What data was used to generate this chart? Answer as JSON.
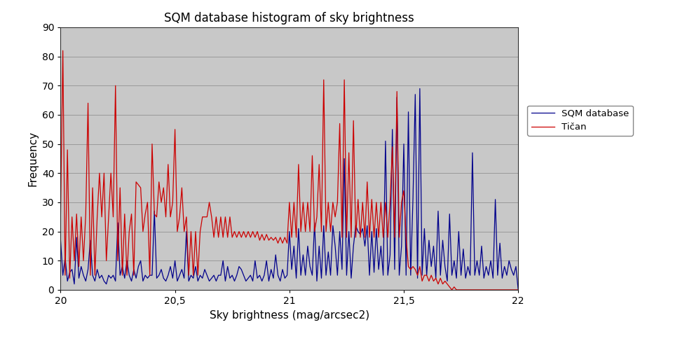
{
  "title": "SQM database histogram of sky brightness",
  "xlabel": "Sky brightness (mag/arcsec2)",
  "ylabel": "Frequency",
  "xlim": [
    20.0,
    22.0
  ],
  "ylim": [
    0,
    90
  ],
  "yticks": [
    0,
    10,
    20,
    30,
    40,
    50,
    60,
    70,
    80,
    90
  ],
  "xticks": [
    20.0,
    20.5,
    21.0,
    21.5,
    22.0
  ],
  "xticklabels": [
    "20",
    "20,5",
    "21",
    "21,5",
    "22"
  ],
  "legend_labels": [
    "SQM database",
    "Tičan"
  ],
  "line_colors": [
    "#00008B",
    "#CC0000"
  ],
  "background_color": "#C8C8C8",
  "title_fontsize": 12,
  "axis_fontsize": 11,
  "tick_fontsize": 10,
  "sqm_x": [
    20.0,
    20.01,
    20.02,
    20.03,
    20.04,
    20.05,
    20.06,
    20.07,
    20.08,
    20.09,
    20.1,
    20.11,
    20.12,
    20.13,
    20.14,
    20.15,
    20.16,
    20.17,
    20.18,
    20.19,
    20.2,
    20.21,
    20.22,
    20.23,
    20.24,
    20.25,
    20.26,
    20.27,
    20.28,
    20.29,
    20.3,
    20.31,
    20.32,
    20.33,
    20.34,
    20.35,
    20.36,
    20.37,
    20.38,
    20.39,
    20.4,
    20.41,
    20.42,
    20.43,
    20.44,
    20.45,
    20.46,
    20.47,
    20.48,
    20.49,
    20.5,
    20.51,
    20.52,
    20.53,
    20.54,
    20.55,
    20.56,
    20.57,
    20.58,
    20.59,
    20.6,
    20.61,
    20.62,
    20.63,
    20.64,
    20.65,
    20.66,
    20.67,
    20.68,
    20.69,
    20.7,
    20.71,
    20.72,
    20.73,
    20.74,
    20.75,
    20.76,
    20.77,
    20.78,
    20.79,
    20.8,
    20.81,
    20.82,
    20.83,
    20.84,
    20.85,
    20.86,
    20.87,
    20.88,
    20.89,
    20.9,
    20.91,
    20.92,
    20.93,
    20.94,
    20.95,
    20.96,
    20.97,
    20.98,
    20.99,
    21.0,
    21.01,
    21.02,
    21.03,
    21.04,
    21.05,
    21.06,
    21.07,
    21.08,
    21.09,
    21.1,
    21.11,
    21.12,
    21.13,
    21.14,
    21.15,
    21.16,
    21.17,
    21.18,
    21.19,
    21.2,
    21.21,
    21.22,
    21.23,
    21.24,
    21.25,
    21.26,
    21.27,
    21.28,
    21.29,
    21.3,
    21.31,
    21.32,
    21.33,
    21.34,
    21.35,
    21.36,
    21.37,
    21.38,
    21.39,
    21.4,
    21.41,
    21.42,
    21.43,
    21.44,
    21.45,
    21.46,
    21.47,
    21.48,
    21.49,
    21.5,
    21.51,
    21.52,
    21.53,
    21.54,
    21.55,
    21.56,
    21.57,
    21.58,
    21.59,
    21.6,
    21.61,
    21.62,
    21.63,
    21.64,
    21.65,
    21.66,
    21.67,
    21.68,
    21.69,
    21.7,
    21.71,
    21.72,
    21.73,
    21.74,
    21.75,
    21.76,
    21.77,
    21.78,
    21.79,
    21.8,
    21.81,
    21.82,
    21.83,
    21.84,
    21.85,
    21.86,
    21.87,
    21.88,
    21.89,
    21.9,
    21.91,
    21.92,
    21.93,
    21.94,
    21.95,
    21.96,
    21.97,
    21.98,
    21.99,
    22.0
  ],
  "sqm_y": [
    17,
    5,
    11,
    3,
    6,
    7,
    2,
    18,
    4,
    8,
    5,
    3,
    7,
    17,
    5,
    3,
    7,
    4,
    5,
    3,
    2,
    5,
    4,
    5,
    3,
    23,
    5,
    8,
    4,
    10,
    5,
    3,
    7,
    4,
    8,
    10,
    3,
    5,
    4,
    5,
    5,
    27,
    4,
    5,
    7,
    4,
    3,
    5,
    8,
    4,
    10,
    3,
    5,
    7,
    4,
    20,
    3,
    5,
    4,
    8,
    3,
    5,
    4,
    7,
    5,
    3,
    4,
    5,
    3,
    5,
    5,
    10,
    3,
    8,
    4,
    5,
    3,
    5,
    8,
    7,
    5,
    3,
    4,
    5,
    3,
    10,
    4,
    5,
    3,
    5,
    10,
    3,
    7,
    4,
    12,
    5,
    3,
    7,
    4,
    5,
    20,
    7,
    15,
    4,
    21,
    5,
    12,
    5,
    15,
    8,
    5,
    23,
    3,
    15,
    4,
    22,
    5,
    13,
    5,
    22,
    15,
    5,
    20,
    7,
    45,
    5,
    20,
    4,
    15,
    22,
    20,
    19,
    21,
    15,
    22,
    5,
    20,
    6,
    21,
    7,
    15,
    5,
    51,
    5,
    12,
    55,
    7,
    66,
    5,
    15,
    50,
    5,
    61,
    5,
    31,
    67,
    4,
    69,
    5,
    21,
    5,
    17,
    8,
    15,
    4,
    27,
    5,
    17,
    8,
    3,
    26,
    5,
    10,
    4,
    20,
    5,
    14,
    4,
    8,
    5,
    47,
    5,
    10,
    5,
    15,
    4,
    8,
    5,
    10,
    4,
    31,
    5,
    16,
    4,
    8,
    5,
    10,
    7,
    5,
    8,
    0
  ],
  "tican_x": [
    20.0,
    20.01,
    20.02,
    20.03,
    20.04,
    20.05,
    20.06,
    20.07,
    20.08,
    20.09,
    20.1,
    20.11,
    20.12,
    20.13,
    20.14,
    20.15,
    20.16,
    20.17,
    20.18,
    20.19,
    20.2,
    20.21,
    20.22,
    20.23,
    20.24,
    20.25,
    20.26,
    20.27,
    20.28,
    20.29,
    20.3,
    20.31,
    20.32,
    20.33,
    20.34,
    20.35,
    20.36,
    20.37,
    20.38,
    20.39,
    20.4,
    20.41,
    20.42,
    20.43,
    20.44,
    20.45,
    20.46,
    20.47,
    20.48,
    20.49,
    20.5,
    20.51,
    20.52,
    20.53,
    20.54,
    20.55,
    20.56,
    20.57,
    20.58,
    20.59,
    20.6,
    20.61,
    20.62,
    20.63,
    20.64,
    20.65,
    20.66,
    20.67,
    20.68,
    20.69,
    20.7,
    20.71,
    20.72,
    20.73,
    20.74,
    20.75,
    20.76,
    20.77,
    20.78,
    20.79,
    20.8,
    20.81,
    20.82,
    20.83,
    20.84,
    20.85,
    20.86,
    20.87,
    20.88,
    20.89,
    20.9,
    20.91,
    20.92,
    20.93,
    20.94,
    20.95,
    20.96,
    20.97,
    20.98,
    20.99,
    21.0,
    21.01,
    21.02,
    21.03,
    21.04,
    21.05,
    21.06,
    21.07,
    21.08,
    21.09,
    21.1,
    21.11,
    21.12,
    21.13,
    21.14,
    21.15,
    21.16,
    21.17,
    21.18,
    21.19,
    21.2,
    21.21,
    21.22,
    21.23,
    21.24,
    21.25,
    21.26,
    21.27,
    21.28,
    21.29,
    21.3,
    21.31,
    21.32,
    21.33,
    21.34,
    21.35,
    21.36,
    21.37,
    21.38,
    21.39,
    21.4,
    21.41,
    21.42,
    21.43,
    21.44,
    21.45,
    21.46,
    21.47,
    21.48,
    21.49,
    21.5,
    21.51,
    21.52,
    21.53,
    21.54,
    21.55,
    21.56,
    21.57,
    21.58,
    21.59,
    21.6,
    21.61,
    21.62,
    21.63,
    21.64,
    21.65,
    21.66,
    21.67,
    21.68,
    21.69,
    21.7,
    21.71,
    21.72,
    21.73,
    21.74,
    21.75,
    21.76,
    21.77,
    21.78,
    21.79,
    21.8,
    21.81,
    21.82,
    21.83,
    21.84,
    21.85,
    21.86,
    21.87,
    21.88,
    21.89,
    21.9,
    21.91,
    21.92,
    21.93,
    21.94,
    21.95,
    21.96,
    21.97,
    21.98,
    21.99,
    22.0
  ],
  "tican_y": [
    26,
    82,
    5,
    48,
    4,
    25,
    10,
    26,
    8,
    25,
    10,
    26,
    64,
    5,
    35,
    5,
    25,
    40,
    25,
    40,
    10,
    25,
    40,
    25,
    70,
    10,
    35,
    5,
    26,
    5,
    20,
    26,
    5,
    37,
    36,
    35,
    20,
    26,
    30,
    5,
    50,
    26,
    25,
    37,
    30,
    35,
    25,
    43,
    25,
    30,
    55,
    20,
    25,
    35,
    20,
    25,
    5,
    20,
    5,
    20,
    5,
    20,
    25,
    25,
    25,
    30,
    25,
    18,
    25,
    18,
    25,
    18,
    25,
    18,
    25,
    18,
    20,
    18,
    20,
    18,
    20,
    18,
    20,
    18,
    20,
    18,
    20,
    17,
    19,
    17,
    19,
    17,
    18,
    17,
    18,
    16,
    18,
    16,
    18,
    16,
    30,
    18,
    30,
    18,
    43,
    20,
    30,
    20,
    30,
    20,
    46,
    20,
    25,
    43,
    20,
    72,
    20,
    30,
    20,
    30,
    25,
    30,
    57,
    18,
    72,
    18,
    47,
    18,
    58,
    18,
    31,
    18,
    30,
    18,
    37,
    18,
    31,
    18,
    30,
    18,
    30,
    18,
    30,
    18,
    30,
    49,
    18,
    68,
    18,
    30,
    34,
    18,
    8,
    7,
    8,
    7,
    5,
    8,
    3,
    5,
    5,
    3,
    5,
    3,
    4,
    2,
    4,
    2,
    3,
    2,
    1,
    0,
    1,
    0,
    0,
    0,
    0,
    0,
    0,
    0,
    0,
    0,
    0,
    0,
    0,
    0,
    0,
    0,
    0,
    0,
    0,
    0,
    0,
    0,
    0,
    0,
    0,
    0,
    0,
    0,
    0
  ]
}
